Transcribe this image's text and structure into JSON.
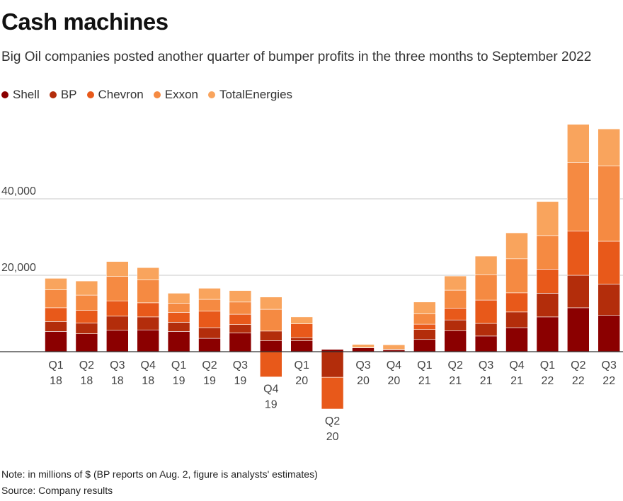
{
  "chart_data": {
    "type": "bar",
    "stacked": true,
    "title": "Cash machines",
    "subtitle": "Big Oil companies posted another quarter of bumper profits in the three months to September 2022",
    "ylim": [
      -15500,
      59000
    ],
    "yticks": [
      20000,
      40000
    ],
    "ytick_labels": [
      "20,000",
      "40,000"
    ],
    "grid": true,
    "legend_position": "top-left",
    "categories": [
      {
        "q": "Q1",
        "y": "18"
      },
      {
        "q": "Q2",
        "y": "18"
      },
      {
        "q": "Q3",
        "y": "18"
      },
      {
        "q": "Q4",
        "y": "18"
      },
      {
        "q": "Q1",
        "y": "19"
      },
      {
        "q": "Q2",
        "y": "19"
      },
      {
        "q": "Q3",
        "y": "19"
      },
      {
        "q": "Q4",
        "y": "19"
      },
      {
        "q": "Q1",
        "y": "20"
      },
      {
        "q": "Q2",
        "y": "20"
      },
      {
        "q": "Q3",
        "y": "20"
      },
      {
        "q": "Q4",
        "y": "20"
      },
      {
        "q": "Q1",
        "y": "21"
      },
      {
        "q": "Q2",
        "y": "21"
      },
      {
        "q": "Q3",
        "y": "21"
      },
      {
        "q": "Q4",
        "y": "21"
      },
      {
        "q": "Q1",
        "y": "22"
      },
      {
        "q": "Q2",
        "y": "22"
      },
      {
        "q": "Q3",
        "y": "22"
      }
    ],
    "series": [
      {
        "name": "Shell",
        "color": "#8b0000",
        "values": [
          5300,
          4700,
          5600,
          5700,
          5300,
          3500,
          4900,
          2900,
          2900,
          600,
          1000,
          500,
          3200,
          5500,
          4100,
          6300,
          9100,
          11500,
          9500
        ]
      },
      {
        "name": "BP",
        "color": "#b32d0b",
        "values": [
          2600,
          2800,
          3700,
          3400,
          2400,
          2800,
          2200,
          2500,
          800,
          -6700,
          100,
          100,
          2600,
          2800,
          3300,
          4100,
          6200,
          8500,
          8200
        ]
      },
      {
        "name": "Chevron",
        "color": "#e8591a",
        "values": [
          3600,
          3300,
          4000,
          3700,
          2600,
          4300,
          2700,
          -6600,
          3600,
          -8300,
          0,
          0,
          1400,
          3100,
          6100,
          5000,
          6300,
          11600,
          11200
        ]
      },
      {
        "name": "Exxon",
        "color": "#f58a42",
        "values": [
          4700,
          4000,
          6400,
          6000,
          2400,
          3100,
          3200,
          5700,
          0,
          0,
          0,
          0,
          2700,
          4700,
          6700,
          8900,
          8800,
          17900,
          19700
        ]
      },
      {
        "name": "TotalEnergies",
        "color": "#f9a45d",
        "values": [
          3000,
          3700,
          3900,
          3200,
          2600,
          2900,
          3000,
          3200,
          1800,
          0,
          800,
          1200,
          3100,
          3700,
          4800,
          6800,
          8900,
          10000,
          9700
        ]
      }
    ]
  },
  "note": "Note: in millions of $ (BP reports on Aug. 2, figure is analysts' estimates)",
  "source": "Source: Company results"
}
